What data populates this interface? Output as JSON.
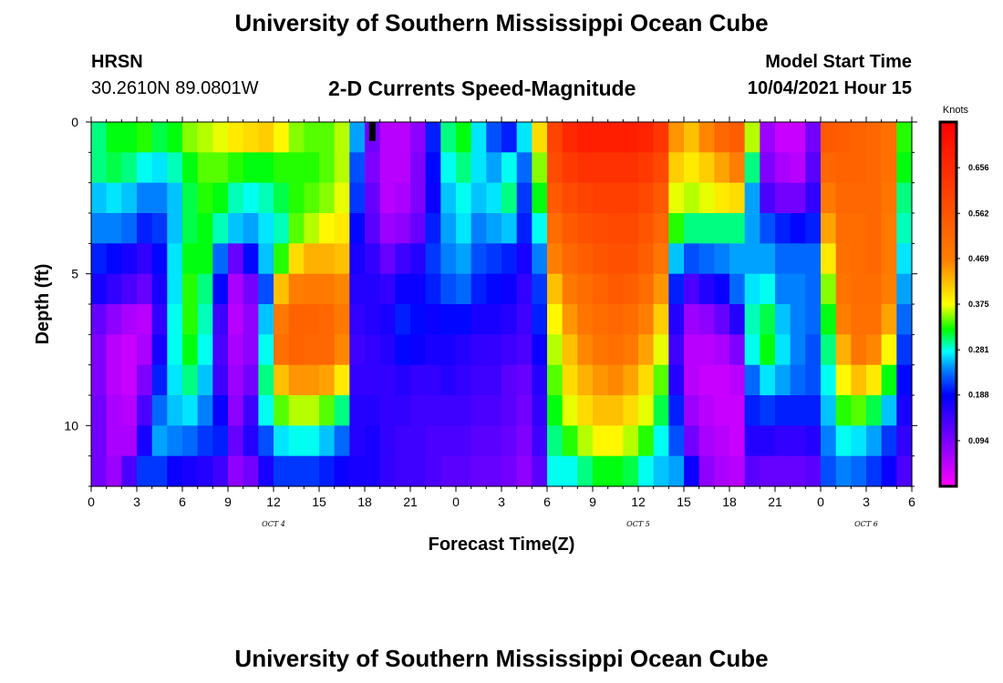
{
  "header": {
    "title": "University of Southern Mississippi Ocean Cube",
    "station": "HRSN",
    "coords": "30.2610N  89.0801W",
    "chart_title": "2-D Currents Speed-Magnitude",
    "model_label": "Model Start Time",
    "model_time": "10/04/2021 Hour 15"
  },
  "footer": {
    "title": "University of Southern Mississippi Ocean Cube"
  },
  "chart_data": {
    "type": "heatmap",
    "title": "2-D Currents Speed-Magnitude",
    "xlabel": "Forecast Time(Z)",
    "ylabel": "Depth (ft)",
    "x_tick_labels": [
      "0",
      "3",
      "6",
      "9",
      "12",
      "15",
      "18",
      "21",
      "0",
      "3",
      "6",
      "9",
      "12",
      "15",
      "18",
      "21",
      "0",
      "3",
      "6"
    ],
    "day_labels": [
      {
        "label": "OCT 4",
        "at_tick": 4
      },
      {
        "label": "OCT 5",
        "at_tick": 12
      },
      {
        "label": "OCT 6",
        "at_tick": 17
      }
    ],
    "y_ticks": [
      0,
      5,
      10
    ],
    "ylim": [
      0,
      12
    ],
    "n_hours": 54,
    "colorbar": {
      "title": "Knots",
      "ticks": [
        "0.656",
        "0.562",
        "0.469",
        "0.375",
        "0.281",
        "0.188",
        "0.094"
      ],
      "min": 0.0,
      "max": 0.75
    },
    "depth_levels": [
      0.5,
      1.5,
      2.5,
      3.5,
      4.5,
      5.5,
      6.5,
      7.5,
      8.5,
      9.5,
      10.5,
      11.5
    ],
    "speed_profiles_knots": [
      [
        0.3,
        0.3,
        0.26,
        0.24,
        0.2,
        0.17,
        0.11,
        0.09,
        0.09,
        0.1,
        0.1,
        0.1
      ],
      [
        0.32,
        0.31,
        0.27,
        0.24,
        0.19,
        0.15,
        0.08,
        0.05,
        0.05,
        0.06,
        0.06,
        0.07
      ],
      [
        0.32,
        0.3,
        0.26,
        0.23,
        0.17,
        0.13,
        0.06,
        0.04,
        0.04,
        0.05,
        0.06,
        0.13
      ],
      [
        0.33,
        0.28,
        0.24,
        0.2,
        0.15,
        0.11,
        0.05,
        0.06,
        0.09,
        0.13,
        0.17,
        0.21
      ],
      [
        0.31,
        0.27,
        0.24,
        0.21,
        0.19,
        0.17,
        0.15,
        0.17,
        0.2,
        0.23,
        0.25,
        0.21
      ],
      [
        0.32,
        0.29,
        0.26,
        0.26,
        0.27,
        0.27,
        0.28,
        0.28,
        0.27,
        0.26,
        0.24,
        0.18
      ],
      [
        0.35,
        0.32,
        0.31,
        0.31,
        0.32,
        0.33,
        0.33,
        0.32,
        0.3,
        0.27,
        0.23,
        0.17
      ],
      [
        0.36,
        0.34,
        0.33,
        0.32,
        0.32,
        0.3,
        0.29,
        0.28,
        0.26,
        0.24,
        0.21,
        0.16
      ],
      [
        0.37,
        0.34,
        0.32,
        0.29,
        0.23,
        0.19,
        0.14,
        0.13,
        0.14,
        0.18,
        0.2,
        0.14
      ],
      [
        0.39,
        0.33,
        0.29,
        0.26,
        0.11,
        0.06,
        0.05,
        0.06,
        0.07,
        0.08,
        0.11,
        0.08
      ],
      [
        0.4,
        0.32,
        0.28,
        0.25,
        0.19,
        0.1,
        0.08,
        0.08,
        0.1,
        0.14,
        0.16,
        0.1
      ],
      [
        0.41,
        0.32,
        0.29,
        0.27,
        0.26,
        0.22,
        0.26,
        0.28,
        0.3,
        0.28,
        0.22,
        0.17
      ],
      [
        0.38,
        0.33,
        0.31,
        0.29,
        0.33,
        0.42,
        0.48,
        0.5,
        0.42,
        0.34,
        0.27,
        0.21
      ],
      [
        0.35,
        0.33,
        0.33,
        0.34,
        0.4,
        0.47,
        0.53,
        0.53,
        0.45,
        0.36,
        0.28,
        0.21
      ],
      [
        0.34,
        0.33,
        0.34,
        0.36,
        0.43,
        0.48,
        0.53,
        0.52,
        0.45,
        0.36,
        0.28,
        0.21
      ],
      [
        0.34,
        0.34,
        0.35,
        0.38,
        0.43,
        0.48,
        0.52,
        0.52,
        0.44,
        0.34,
        0.26,
        0.2
      ],
      [
        0.36,
        0.36,
        0.37,
        0.39,
        0.42,
        0.46,
        0.48,
        0.46,
        0.39,
        0.3,
        0.23,
        0.18
      ],
      [
        0.25,
        0.22,
        0.21,
        0.19,
        0.17,
        0.16,
        0.15,
        0.14,
        0.15,
        0.16,
        0.16,
        0.17
      ],
      [
        0.1,
        0.09,
        0.11,
        0.12,
        0.15,
        0.16,
        0.16,
        0.15,
        0.15,
        0.16,
        0.17,
        0.17
      ],
      [
        0.05,
        0.05,
        0.05,
        0.07,
        0.11,
        0.15,
        0.17,
        0.16,
        0.15,
        0.15,
        0.15,
        0.15
      ],
      [
        0.05,
        0.05,
        0.06,
        0.08,
        0.14,
        0.18,
        0.2,
        0.19,
        0.16,
        0.15,
        0.14,
        0.14
      ],
      [
        0.08,
        0.09,
        0.09,
        0.11,
        0.16,
        0.18,
        0.19,
        0.18,
        0.15,
        0.14,
        0.14,
        0.14
      ],
      [
        0.2,
        0.19,
        0.18,
        0.2,
        0.21,
        0.2,
        0.18,
        0.17,
        0.15,
        0.14,
        0.13,
        0.13
      ],
      [
        0.3,
        0.28,
        0.26,
        0.25,
        0.24,
        0.22,
        0.19,
        0.17,
        0.16,
        0.14,
        0.13,
        0.12
      ],
      [
        0.32,
        0.3,
        0.28,
        0.27,
        0.25,
        0.23,
        0.19,
        0.16,
        0.15,
        0.14,
        0.13,
        0.12
      ],
      [
        0.27,
        0.27,
        0.26,
        0.24,
        0.22,
        0.2,
        0.17,
        0.15,
        0.14,
        0.13,
        0.12,
        0.11
      ],
      [
        0.22,
        0.25,
        0.27,
        0.25,
        0.21,
        0.19,
        0.17,
        0.15,
        0.14,
        0.13,
        0.12,
        0.11
      ],
      [
        0.2,
        0.28,
        0.3,
        0.26,
        0.2,
        0.18,
        0.16,
        0.14,
        0.12,
        0.12,
        0.11,
        0.1
      ],
      [
        0.27,
        0.23,
        0.21,
        0.2,
        0.17,
        0.15,
        0.14,
        0.13,
        0.11,
        0.1,
        0.09,
        0.08
      ],
      [
        0.4,
        0.35,
        0.32,
        0.28,
        0.24,
        0.21,
        0.2,
        0.18,
        0.16,
        0.15,
        0.14,
        0.12
      ],
      [
        0.6,
        0.58,
        0.55,
        0.51,
        0.47,
        0.42,
        0.38,
        0.36,
        0.34,
        0.32,
        0.3,
        0.28
      ],
      [
        0.66,
        0.62,
        0.58,
        0.55,
        0.52,
        0.48,
        0.45,
        0.42,
        0.4,
        0.37,
        0.33,
        0.28
      ],
      [
        0.68,
        0.64,
        0.6,
        0.57,
        0.54,
        0.51,
        0.49,
        0.46,
        0.43,
        0.4,
        0.36,
        0.3
      ],
      [
        0.68,
        0.64,
        0.61,
        0.58,
        0.56,
        0.53,
        0.51,
        0.49,
        0.45,
        0.42,
        0.38,
        0.32
      ],
      [
        0.68,
        0.64,
        0.61,
        0.59,
        0.57,
        0.55,
        0.52,
        0.5,
        0.46,
        0.42,
        0.38,
        0.32
      ],
      [
        0.68,
        0.64,
        0.61,
        0.59,
        0.57,
        0.54,
        0.51,
        0.48,
        0.44,
        0.4,
        0.36,
        0.31
      ],
      [
        0.67,
        0.62,
        0.59,
        0.56,
        0.54,
        0.51,
        0.47,
        0.44,
        0.4,
        0.37,
        0.33,
        0.28
      ],
      [
        0.63,
        0.59,
        0.55,
        0.52,
        0.49,
        0.45,
        0.41,
        0.37,
        0.34,
        0.31,
        0.28,
        0.26
      ],
      [
        0.45,
        0.41,
        0.37,
        0.33,
        0.26,
        0.2,
        0.16,
        0.14,
        0.16,
        0.2,
        0.22,
        0.25
      ],
      [
        0.42,
        0.39,
        0.36,
        0.3,
        0.22,
        0.13,
        0.07,
        0.05,
        0.05,
        0.07,
        0.1,
        0.18
      ],
      [
        0.46,
        0.41,
        0.37,
        0.3,
        0.23,
        0.16,
        0.08,
        0.05,
        0.04,
        0.05,
        0.06,
        0.08
      ],
      [
        0.52,
        0.44,
        0.39,
        0.3,
        0.24,
        0.18,
        0.11,
        0.06,
        0.04,
        0.04,
        0.05,
        0.06
      ],
      [
        0.54,
        0.47,
        0.4,
        0.3,
        0.25,
        0.23,
        0.16,
        0.09,
        0.05,
        0.04,
        0.04,
        0.05
      ],
      [
        0.36,
        0.3,
        0.25,
        0.25,
        0.25,
        0.27,
        0.29,
        0.28,
        0.23,
        0.2,
        0.16,
        0.12
      ],
      [
        0.07,
        0.09,
        0.13,
        0.22,
        0.25,
        0.28,
        0.31,
        0.32,
        0.27,
        0.21,
        0.16,
        0.11
      ],
      [
        0.04,
        0.06,
        0.1,
        0.2,
        0.23,
        0.24,
        0.26,
        0.27,
        0.25,
        0.2,
        0.15,
        0.11
      ],
      [
        0.04,
        0.05,
        0.1,
        0.19,
        0.23,
        0.24,
        0.24,
        0.24,
        0.23,
        0.2,
        0.15,
        0.11
      ],
      [
        0.1,
        0.12,
        0.15,
        0.2,
        0.23,
        0.23,
        0.23,
        0.22,
        0.22,
        0.2,
        0.16,
        0.12
      ],
      [
        0.55,
        0.52,
        0.48,
        0.44,
        0.39,
        0.35,
        0.32,
        0.3,
        0.28,
        0.26,
        0.24,
        0.22
      ],
      [
        0.54,
        0.53,
        0.52,
        0.51,
        0.5,
        0.49,
        0.47,
        0.43,
        0.38,
        0.33,
        0.28,
        0.24
      ],
      [
        0.53,
        0.53,
        0.52,
        0.51,
        0.51,
        0.51,
        0.5,
        0.49,
        0.42,
        0.34,
        0.27,
        0.23
      ],
      [
        0.52,
        0.52,
        0.52,
        0.52,
        0.52,
        0.51,
        0.5,
        0.46,
        0.39,
        0.31,
        0.25,
        0.21
      ],
      [
        0.5,
        0.5,
        0.49,
        0.48,
        0.48,
        0.47,
        0.44,
        0.38,
        0.32,
        0.26,
        0.21,
        0.18
      ],
      [
        0.33,
        0.32,
        0.3,
        0.29,
        0.27,
        0.25,
        0.23,
        0.21,
        0.19,
        0.17,
        0.15,
        0.13
      ]
    ],
    "marker": {
      "hour": 18.5,
      "depth_from": 0.0,
      "depth_to": 0.5,
      "color": "#000000"
    }
  }
}
